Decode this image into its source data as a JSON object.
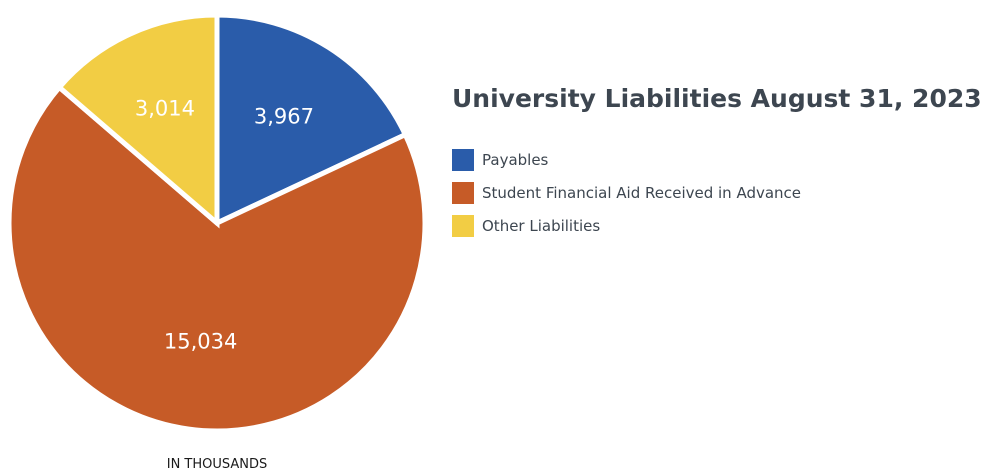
{
  "chart_data": {
    "type": "pie",
    "title": "University Liabilities August 31, 2023",
    "units_note": "IN THOUSANDS",
    "legend_position": "right",
    "categories": [
      "Payables",
      "Student Financial Aid Received in Advance",
      "Other Liabilities"
    ],
    "values": [
      3967,
      15034,
      3014
    ],
    "value_labels": [
      "3,967",
      "15,034",
      "3,014"
    ],
    "colors": [
      "#2a5caa",
      "#c65b27",
      "#f2cd44"
    ]
  }
}
